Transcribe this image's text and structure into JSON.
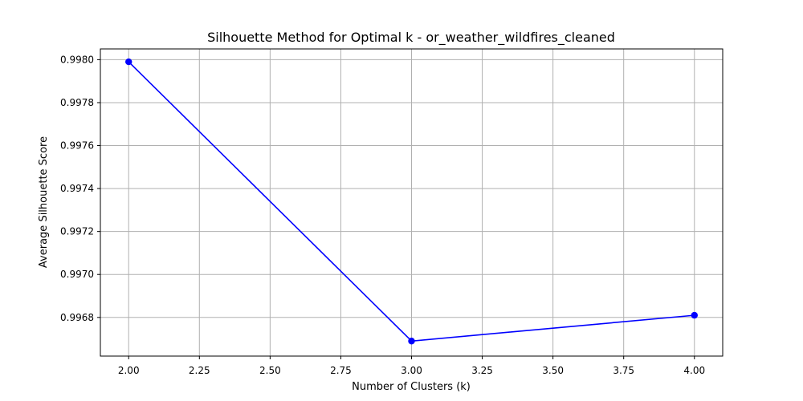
{
  "chart_data": {
    "type": "line",
    "title": "Silhouette Method for Optimal k - or_weather_wildfires_cleaned",
    "xlabel": "Number of Clusters (k)",
    "ylabel": "Average Silhouette Score",
    "xlim": [
      1.9,
      4.1
    ],
    "ylim": [
      0.99662,
      0.99805
    ],
    "x_ticks": [
      2.0,
      2.25,
      2.5,
      2.75,
      3.0,
      3.25,
      3.5,
      3.75,
      4.0
    ],
    "x_tick_labels": [
      "2.00",
      "2.25",
      "2.50",
      "2.75",
      "3.00",
      "3.25",
      "3.50",
      "3.75",
      "4.00"
    ],
    "y_ticks": [
      0.9968,
      0.997,
      0.9972,
      0.9974,
      0.9976,
      0.9978,
      0.998
    ],
    "y_tick_labels": [
      "0.9968",
      "0.9970",
      "0.9972",
      "0.9974",
      "0.9976",
      "0.9978",
      "0.9980"
    ],
    "grid": true,
    "series": [
      {
        "x": [
          2,
          3,
          4
        ],
        "values": [
          0.99799,
          0.99669,
          0.99681
        ],
        "color": "#0000ff",
        "marker": "circle"
      }
    ]
  }
}
